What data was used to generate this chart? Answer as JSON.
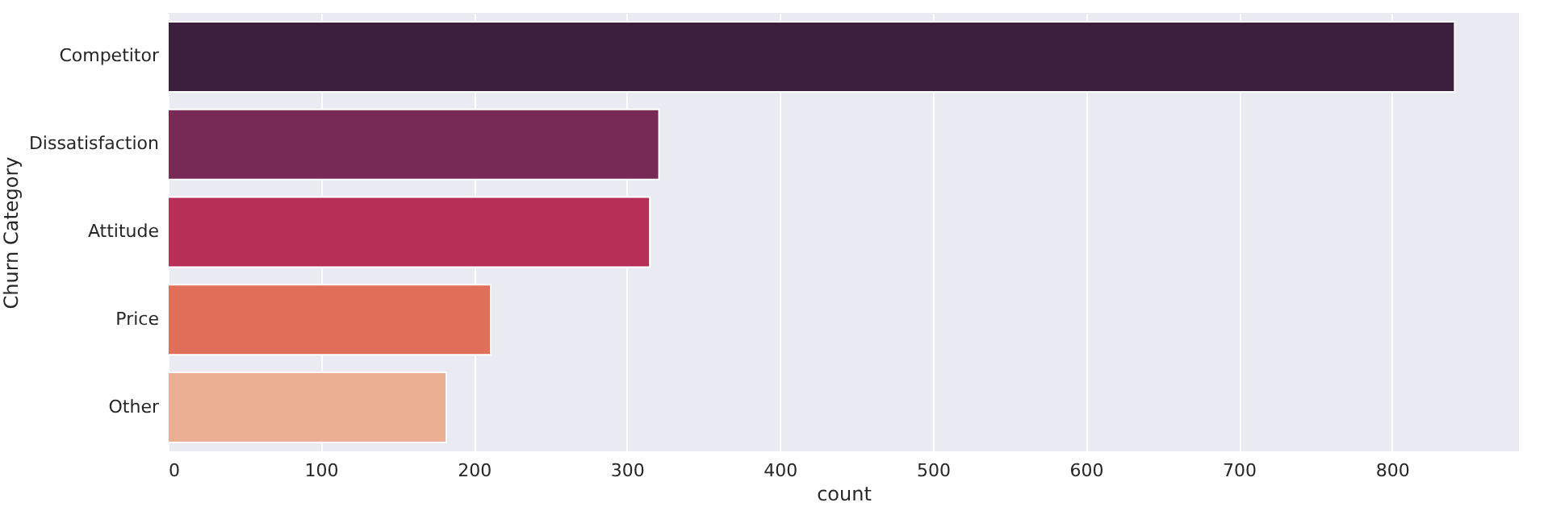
{
  "chart_data": {
    "type": "bar",
    "orientation": "horizontal",
    "xlabel": "count",
    "ylabel": "Churn Category",
    "categories": [
      "Competitor",
      "Dissatisfaction",
      "Attitude",
      "Price",
      "Other"
    ],
    "values": [
      841,
      321,
      315,
      211,
      182
    ],
    "colors": [
      "#3b1f3c",
      "#782a56",
      "#b72f57",
      "#df6f58",
      "#ebb093"
    ],
    "xlim": [
      0,
      883
    ],
    "xticks": [
      0,
      100,
      200,
      300,
      400,
      500,
      600,
      700,
      800
    ],
    "grid": "x",
    "legend": false
  }
}
